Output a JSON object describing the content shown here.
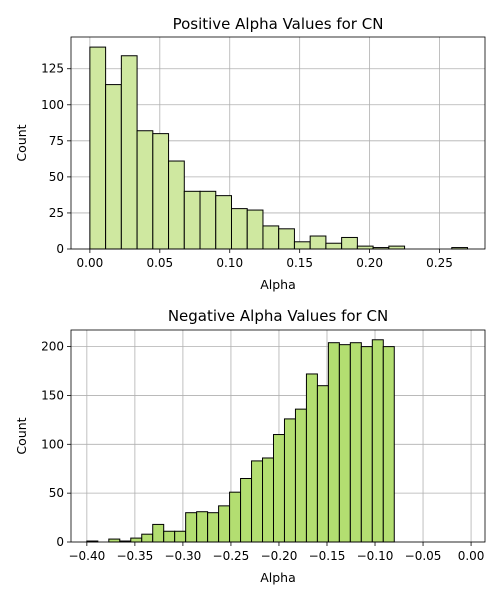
{
  "chart_data": [
    {
      "type": "bar",
      "title": "Positive Alpha Values for CN",
      "xlabel": "Alpha",
      "ylabel": "Count",
      "xlim": [
        -0.0135,
        0.2825
      ],
      "ylim": [
        0,
        147
      ],
      "xticks": [
        0.0,
        0.05,
        0.1,
        0.15,
        0.2,
        0.25
      ],
      "xtick_labels": [
        "0.00",
        "0.05",
        "0.10",
        "0.15",
        "0.20",
        "0.25"
      ],
      "yticks": [
        0,
        25,
        50,
        75,
        100,
        125
      ],
      "ytick_labels": [
        "0",
        "25",
        "50",
        "75",
        "100",
        "125"
      ],
      "grid": true,
      "bar_color": "#cfe8a0",
      "bin_start": 0.0,
      "bin_width": 0.01125,
      "values": [
        140,
        114,
        134,
        82,
        80,
        61,
        40,
        40,
        37,
        28,
        27,
        16,
        14,
        5,
        9,
        4,
        8,
        2,
        1,
        2,
        0,
        0,
        0,
        1
      ]
    },
    {
      "type": "bar",
      "title": "Negative Alpha Values for CN",
      "xlabel": "Alpha",
      "ylabel": "Count",
      "xlim": [
        -0.4165,
        0.0145
      ],
      "ylim": [
        0,
        217
      ],
      "xticks": [
        -0.4,
        -0.35,
        -0.3,
        -0.25,
        -0.2,
        -0.15,
        -0.1,
        -0.05,
        0.0
      ],
      "xtick_labels": [
        "−0.40",
        "−0.35",
        "−0.30",
        "−0.25",
        "−0.20",
        "−0.15",
        "−0.10",
        "−0.05",
        "0.00"
      ],
      "yticks": [
        0,
        50,
        100,
        150,
        200
      ],
      "ytick_labels": [
        "0",
        "50",
        "100",
        "150",
        "200"
      ],
      "grid": true,
      "bar_color": "#b3de71",
      "bin_start": -0.4,
      "bin_width": 0.01143,
      "values": [
        1,
        0,
        3,
        1,
        4,
        8,
        18,
        11,
        11,
        30,
        31,
        30,
        37,
        51,
        65,
        83,
        86,
        110,
        126,
        136,
        172,
        160,
        204,
        202,
        204,
        200,
        207,
        200
      ]
    }
  ]
}
